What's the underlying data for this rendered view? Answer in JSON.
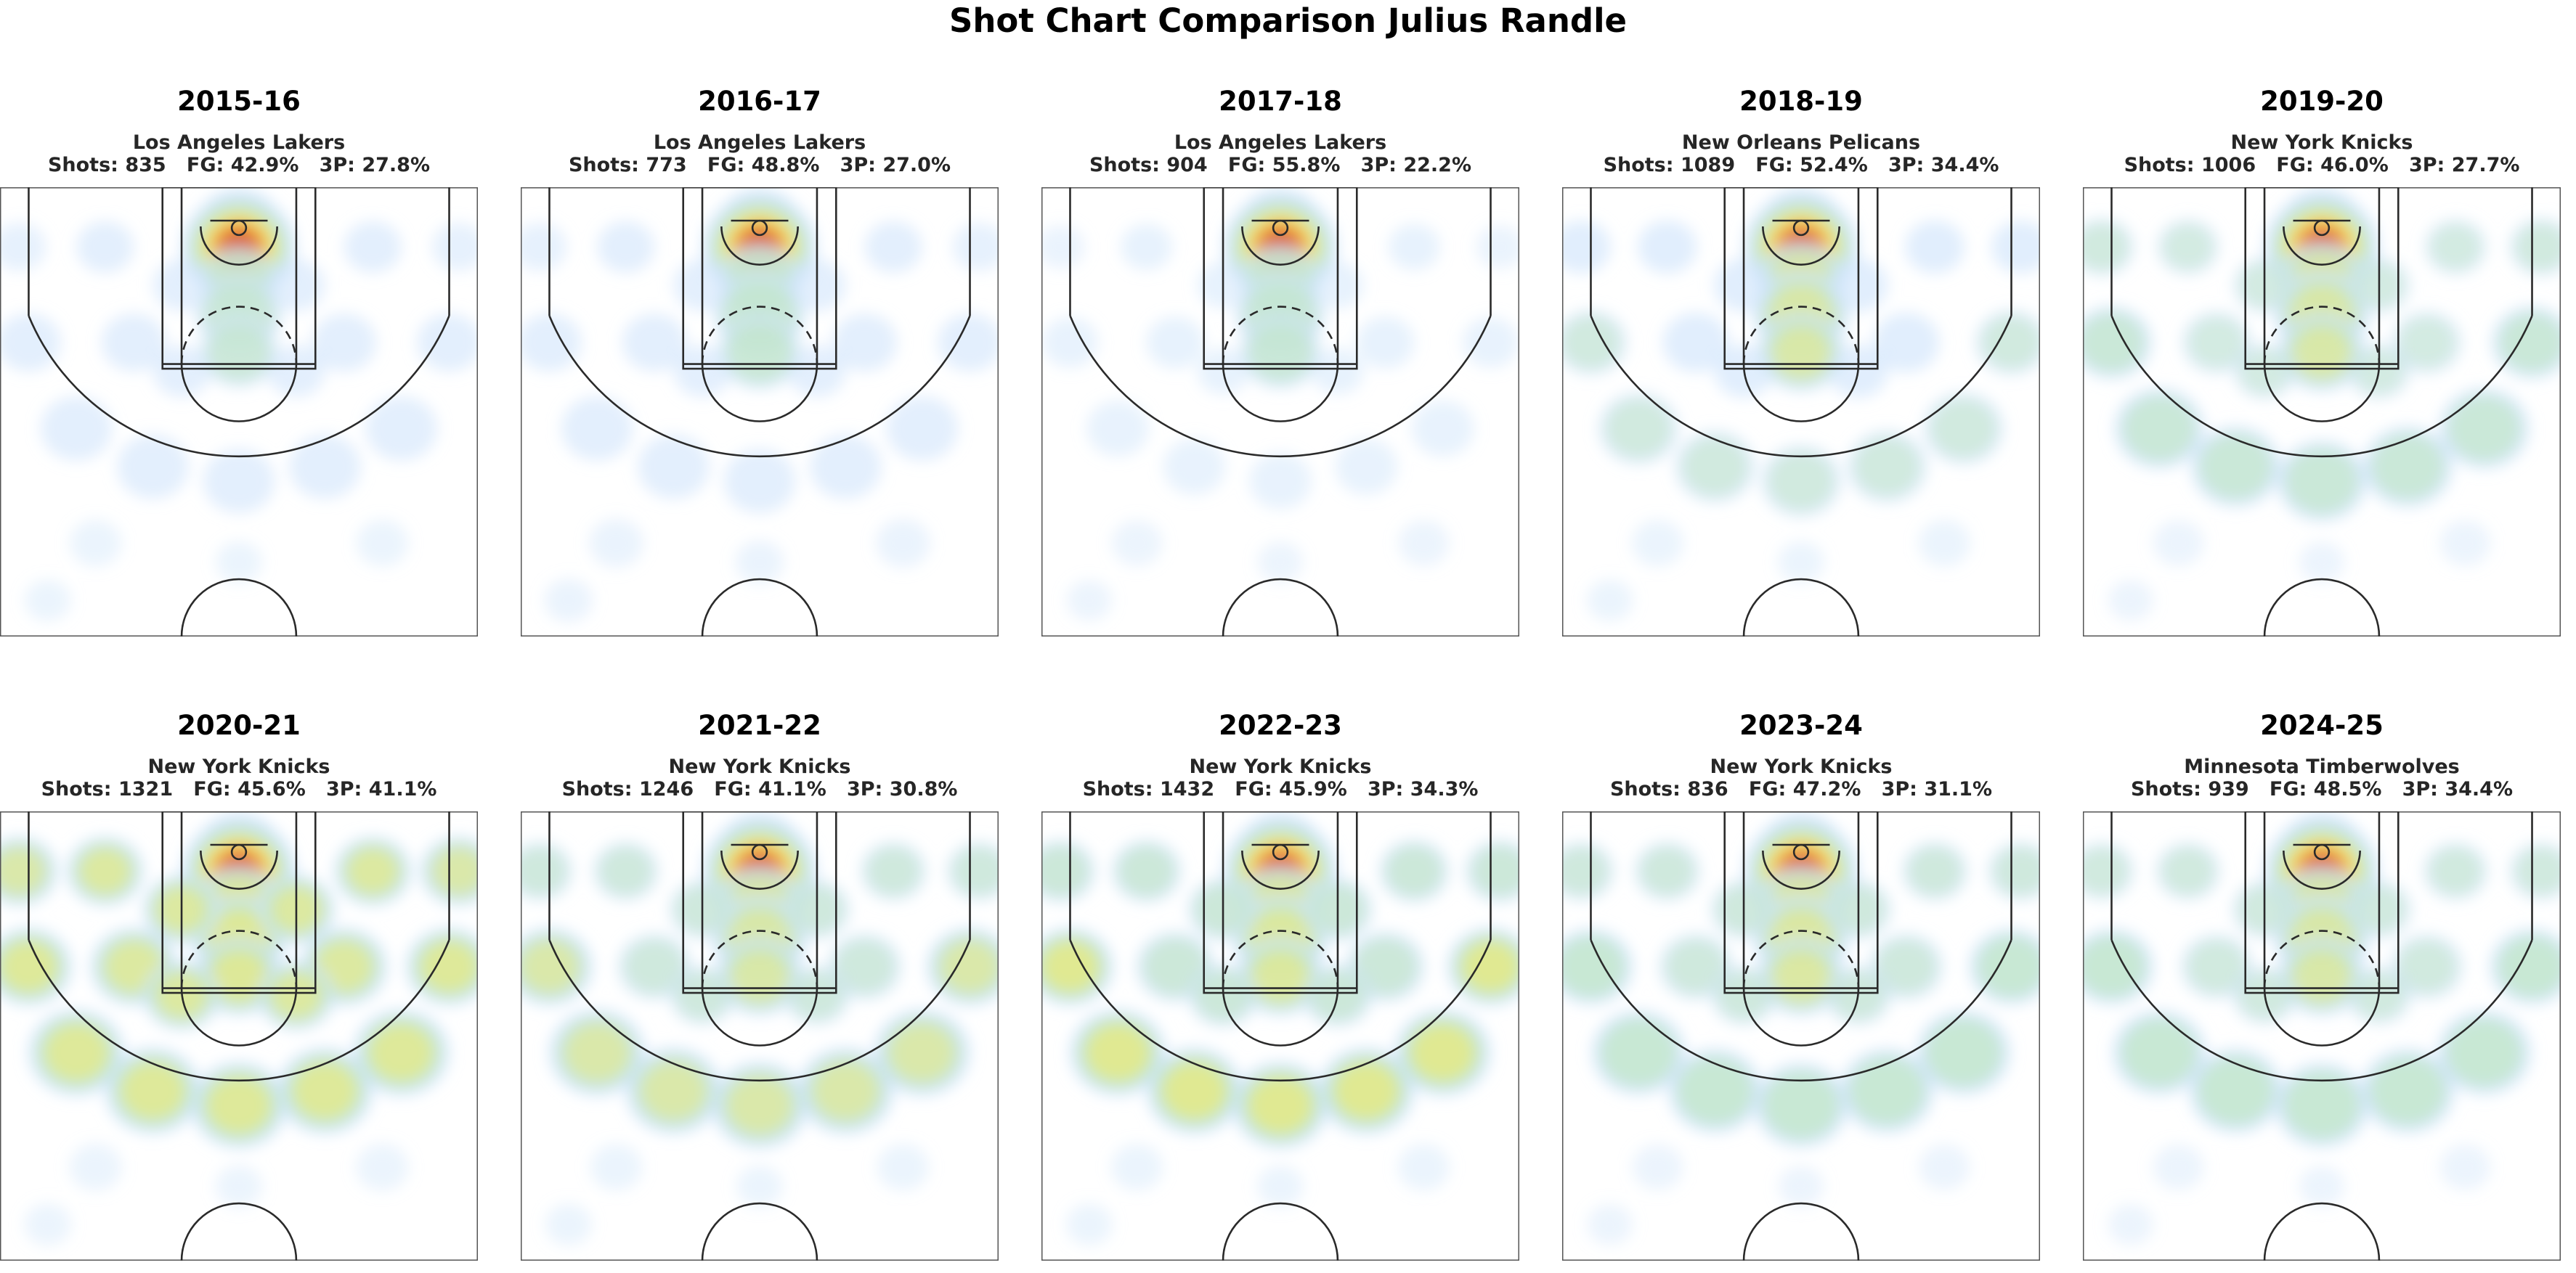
{
  "title": "Shot Chart Comparison Julius Randle",
  "colors": {
    "court_line": "#2a2a2a",
    "heat_low": "#cfe4fb",
    "heat_mid": "#bfe7b8",
    "heat_high": "#f7e96a",
    "heat_hot": "#f08a28",
    "heat_max": "#c4160c"
  },
  "chart_data": [
    {
      "type": "heatmap",
      "season": "2015-16",
      "team": "Los Angeles Lakers",
      "stats_line": "Shots: 835   FG: 42.9%   3P: 27.8%",
      "shots": 835,
      "fg_pct": 42.9,
      "three_pct": 27.8,
      "zones": {
        "rim": 1.0,
        "paint": 0.35,
        "midrange": 0.2,
        "arc": 0.2,
        "corner3": 0.15,
        "deep": 0.05
      }
    },
    {
      "type": "heatmap",
      "season": "2016-17",
      "team": "Los Angeles Lakers",
      "stats_line": "Shots: 773   FG: 48.8%   3P: 27.0%",
      "shots": 773,
      "fg_pct": 48.8,
      "three_pct": 27.0,
      "zones": {
        "rim": 1.0,
        "paint": 0.4,
        "midrange": 0.2,
        "arc": 0.2,
        "corner3": 0.15,
        "deep": 0.08
      }
    },
    {
      "type": "heatmap",
      "season": "2017-18",
      "team": "Los Angeles Lakers",
      "stats_line": "Shots: 904   FG: 55.8%   3P: 22.2%",
      "shots": 904,
      "fg_pct": 55.8,
      "three_pct": 22.2,
      "zones": {
        "rim": 1.0,
        "paint": 0.38,
        "midrange": 0.12,
        "arc": 0.1,
        "corner3": 0.08,
        "deep": 0.04
      }
    },
    {
      "type": "heatmap",
      "season": "2018-19",
      "team": "New Orleans Pelicans",
      "stats_line": "Shots: 1089   FG: 52.4%   3P: 34.4%",
      "shots": 1089,
      "fg_pct": 52.4,
      "three_pct": 34.4,
      "zones": {
        "rim": 1.0,
        "paint": 0.45,
        "midrange": 0.22,
        "arc": 0.28,
        "corner3": 0.22,
        "deep": 0.05
      }
    },
    {
      "type": "heatmap",
      "season": "2019-20",
      "team": "New York Knicks",
      "stats_line": "Shots: 1006   FG: 46.0%   3P: 27.7%",
      "shots": 1006,
      "fg_pct": 46.0,
      "three_pct": 27.7,
      "zones": {
        "rim": 1.0,
        "paint": 0.45,
        "midrange": 0.25,
        "arc": 0.38,
        "corner3": 0.28,
        "deep": 0.04
      }
    },
    {
      "type": "heatmap",
      "season": "2020-21",
      "team": "New York Knicks",
      "stats_line": "Shots: 1321   FG: 45.6%   3P: 41.1%",
      "shots": 1321,
      "fg_pct": 45.6,
      "three_pct": 41.1,
      "zones": {
        "rim": 1.0,
        "paint": 0.55,
        "midrange": 0.5,
        "arc": 0.55,
        "corner3": 0.45,
        "deep": 0.06
      }
    },
    {
      "type": "heatmap",
      "season": "2021-22",
      "team": "New York Knicks",
      "stats_line": "Shots: 1246   FG: 41.1%   3P: 30.8%",
      "shots": 1246,
      "fg_pct": 41.1,
      "three_pct": 30.8,
      "zones": {
        "rim": 1.0,
        "paint": 0.45,
        "midrange": 0.3,
        "arc": 0.45,
        "corner3": 0.3,
        "deep": 0.05
      }
    },
    {
      "type": "heatmap",
      "season": "2022-23",
      "team": "New York Knicks",
      "stats_line": "Shots: 1432   FG: 45.9%   3P: 34.3%",
      "shots": 1432,
      "fg_pct": 45.9,
      "three_pct": 34.3,
      "zones": {
        "rim": 1.0,
        "paint": 0.5,
        "midrange": 0.35,
        "arc": 0.6,
        "corner3": 0.35,
        "deep": 0.05
      }
    },
    {
      "type": "heatmap",
      "season": "2023-24",
      "team": "New York Knicks",
      "stats_line": "Shots: 836   FG: 47.2%   3P: 31.1%",
      "shots": 836,
      "fg_pct": 47.2,
      "three_pct": 31.1,
      "zones": {
        "rim": 1.0,
        "paint": 0.48,
        "midrange": 0.3,
        "arc": 0.42,
        "corner3": 0.3,
        "deep": 0.04
      }
    },
    {
      "type": "heatmap",
      "season": "2024-25",
      "team": "Minnesota Timberwolves",
      "stats_line": "Shots: 939   FG: 48.5%   3P: 34.4%",
      "shots": 939,
      "fg_pct": 48.5,
      "three_pct": 34.4,
      "zones": {
        "rim": 1.0,
        "paint": 0.45,
        "midrange": 0.28,
        "arc": 0.42,
        "corner3": 0.28,
        "deep": 0.04
      }
    }
  ]
}
